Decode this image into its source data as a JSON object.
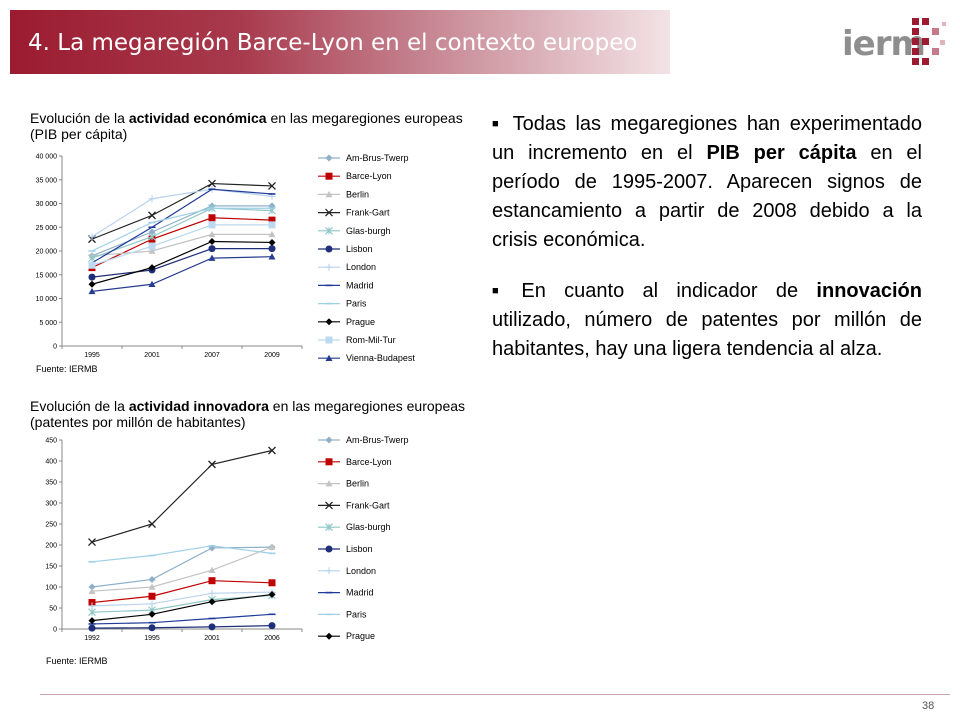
{
  "header": {
    "title": "4. La megaregión Barce-Lyon en el contexto europeo",
    "band_color": "#9b1b30",
    "logo_text": "ierm"
  },
  "chart1_caption": {
    "pre": "Evolución de la ",
    "bold": "actividad económica",
    "post": " en las megaregiones europeas (PIB per cápita)"
  },
  "chart2_caption": {
    "pre": "Evolución de la ",
    "bold": "actividad innovadora",
    "post": " en las megaregiones europeas (patentes por millón de habitantes)"
  },
  "source1": "Fuente: IERMB",
  "source2": "Fuente: IERMB",
  "chart_data": [
    {
      "type": "line",
      "x": [
        "1995",
        "2001",
        "2007",
        "2009"
      ],
      "y_ticks": [
        "0",
        "5 000",
        "10 000",
        "15 000",
        "20 000",
        "25 000",
        "30 000",
        "35 000",
        "40 000"
      ],
      "ylim": [
        0,
        40000
      ],
      "legend_position": "right",
      "grid": false,
      "series": [
        {
          "name": "Am-Brus-Twerp",
          "color": "#8fb0c9",
          "marker": "diamond",
          "values": [
            19000,
            24000,
            29500,
            29500
          ]
        },
        {
          "name": "Barce-Lyon",
          "color": "#c00000",
          "marker": "square",
          "values": [
            16500,
            22500,
            27000,
            26500
          ]
        },
        {
          "name": "Berlin",
          "color": "#c3c3c3",
          "marker": "triangle",
          "values": [
            19000,
            20000,
            23500,
            23500
          ]
        },
        {
          "name": "Frank-Gart",
          "color": "#222222",
          "marker": "x",
          "values": [
            22500,
            27500,
            34200,
            33700
          ]
        },
        {
          "name": "Glas-burgh",
          "color": "#8fc6c6",
          "marker": "star",
          "values": [
            18500,
            23000,
            29000,
            28500
          ]
        },
        {
          "name": "Lisbon",
          "color": "#1f2f7a",
          "marker": "circle",
          "values": [
            14500,
            16000,
            20500,
            20500
          ]
        },
        {
          "name": "London",
          "color": "#b9d3ee",
          "marker": "plus",
          "values": [
            23000,
            31000,
            33000,
            31500
          ]
        },
        {
          "name": "Madrid",
          "color": "#1f3b99",
          "marker": "dash",
          "values": [
            17500,
            25000,
            33000,
            32000
          ]
        },
        {
          "name": "Paris",
          "color": "#9fd0e6",
          "marker": "dash",
          "values": [
            20000,
            26000,
            29000,
            29000
          ]
        },
        {
          "name": "Prague",
          "color": "#000000",
          "marker": "diamond",
          "values": [
            13000,
            16500,
            22000,
            21800
          ]
        },
        {
          "name": "Rom-Mil-Tur",
          "color": "#bcd9ef",
          "marker": "square",
          "values": [
            17000,
            21000,
            25500,
            25500
          ]
        },
        {
          "name": "Vienna-Budapest",
          "color": "#263c8f",
          "marker": "triangle",
          "values": [
            11500,
            13000,
            18500,
            18800
          ]
        }
      ]
    },
    {
      "type": "line",
      "x": [
        "1992",
        "1995",
        "2001",
        "2006"
      ],
      "y_ticks": [
        "0",
        "50",
        "100",
        "150",
        "200",
        "250",
        "300",
        "350",
        "400",
        "450"
      ],
      "ylim": [
        0,
        450
      ],
      "legend_position": "right",
      "grid": false,
      "series": [
        {
          "name": "Am-Brus-Twerp",
          "color": "#8fb0c9",
          "marker": "diamond",
          "values": [
            100,
            118,
            193,
            195
          ]
        },
        {
          "name": "Barce-Lyon",
          "color": "#c00000",
          "marker": "square",
          "values": [
            63,
            78,
            115,
            110
          ]
        },
        {
          "name": "Berlin",
          "color": "#c3c3c3",
          "marker": "triangle",
          "values": [
            90,
            100,
            140,
            195
          ]
        },
        {
          "name": "Frank-Gart",
          "color": "#222222",
          "marker": "x",
          "values": [
            207,
            250,
            392,
            425
          ]
        },
        {
          "name": "Glas-burgh",
          "color": "#8fc6c6",
          "marker": "star",
          "values": [
            40,
            45,
            70,
            80
          ]
        },
        {
          "name": "Lisbon",
          "color": "#1f2f7a",
          "marker": "circle",
          "values": [
            2,
            3,
            5,
            8
          ]
        },
        {
          "name": "London",
          "color": "#b9d3ee",
          "marker": "plus",
          "values": [
            55,
            60,
            85,
            88
          ]
        },
        {
          "name": "Madrid",
          "color": "#1f3b99",
          "marker": "dash",
          "values": [
            12,
            15,
            25,
            35
          ]
        },
        {
          "name": "Paris",
          "color": "#9fd0e6",
          "marker": "dash",
          "values": [
            160,
            175,
            198,
            180
          ]
        },
        {
          "name": "Prague",
          "color": "#000000",
          "marker": "diamond",
          "values": [
            20,
            35,
            65,
            82
          ]
        }
      ]
    }
  ],
  "bullets": [
    {
      "segments": [
        {
          "t": "Todas las megaregiones han experimentado un incremento en el ",
          "b": false
        },
        {
          "t": "PIB per cápita",
          "b": true
        },
        {
          "t": " en el período de 1995-2007. Aparecen signos de estancamiento a partir de 2008 debido a la crisis económica.",
          "b": false
        }
      ]
    },
    {
      "segments": [
        {
          "t": "En cuanto al indicador de ",
          "b": false
        },
        {
          "t": "innovación",
          "b": true
        },
        {
          "t": " utilizado, número de patentes por millón de habitantes, hay una ligera tendencia al alza.",
          "b": false
        }
      ]
    }
  ],
  "page_number": "38"
}
